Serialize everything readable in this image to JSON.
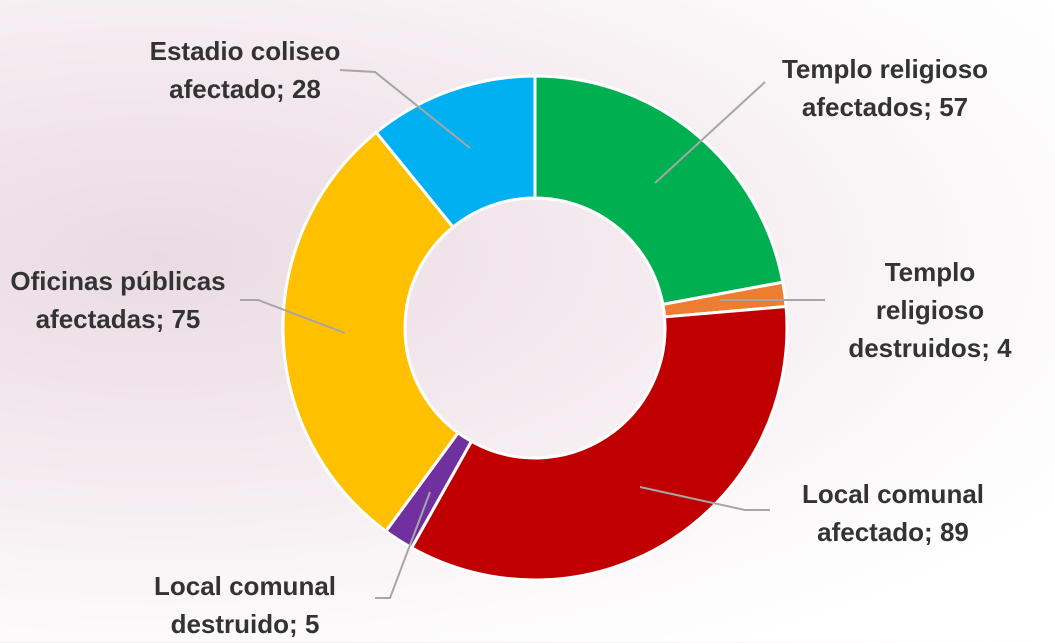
{
  "chart_data": {
    "type": "donut",
    "categories": [
      "Templo religioso afectados",
      "Templo religioso destruidos",
      "Local comunal afectado",
      "Local comunal destruido",
      "Oficinas públicas afectadas",
      "Estadio coliseo afectado"
    ],
    "values": [
      57,
      4,
      89,
      5,
      75,
      28
    ],
    "colors": [
      "#00b050",
      "#ed7d31",
      "#c00000",
      "#7030a0",
      "#ffc000",
      "#00b0f0"
    ]
  }
}
